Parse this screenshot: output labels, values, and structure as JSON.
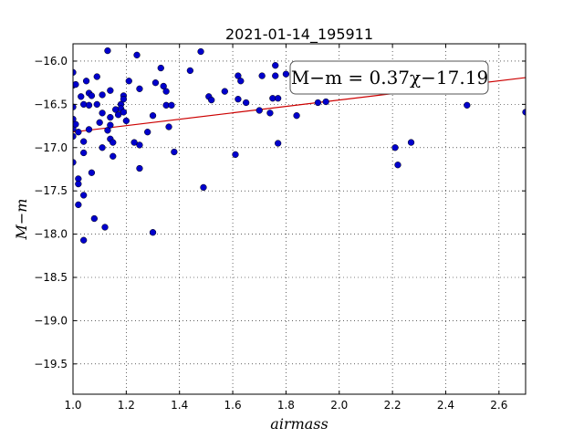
{
  "chart_data": {
    "type": "scatter",
    "title": "2021-01-14_195911",
    "xlabel": "airmass",
    "ylabel": "M−m",
    "xlim": [
      1.0,
      2.7
    ],
    "ylim": [
      -19.85,
      -15.8
    ],
    "y_inverted": false,
    "grid": true,
    "xticks": [
      1.0,
      1.2,
      1.4,
      1.6,
      1.8,
      2.0,
      2.2,
      2.4,
      2.6
    ],
    "xtick_labels": [
      "1.0",
      "1.2",
      "1.4",
      "1.6",
      "1.8",
      "2.0",
      "2.2",
      "2.4",
      "2.6"
    ],
    "yticks": [
      -16.0,
      -16.5,
      -17.0,
      -17.5,
      -18.0,
      -18.5,
      -19.0,
      -19.5
    ],
    "ytick_labels": [
      "−16.0",
      "−16.5",
      "−17.0",
      "−17.5",
      "−18.0",
      "−18.5",
      "−19.0",
      "−19.5"
    ],
    "point_color": "#0000cc",
    "fit_color": "#cc0000",
    "fit": {
      "slope": 0.37,
      "intercept": -17.19
    },
    "annotation": "M−m = 0.37χ−17.19",
    "points": [
      {
        "x": 1.0,
        "y": -16.13
      },
      {
        "x": 1.0,
        "y": -16.28
      },
      {
        "x": 1.0,
        "y": -16.53
      },
      {
        "x": 1.0,
        "y": -16.67
      },
      {
        "x": 1.0,
        "y": -16.78
      },
      {
        "x": 1.0,
        "y": -16.87
      },
      {
        "x": 1.0,
        "y": -17.17
      },
      {
        "x": 1.01,
        "y": -16.27
      },
      {
        "x": 1.01,
        "y": -16.73
      },
      {
        "x": 1.02,
        "y": -16.82
      },
      {
        "x": 1.02,
        "y": -17.36
      },
      {
        "x": 1.02,
        "y": -17.42
      },
      {
        "x": 1.02,
        "y": -17.66
      },
      {
        "x": 1.03,
        "y": -16.41
      },
      {
        "x": 1.04,
        "y": -16.5
      },
      {
        "x": 1.04,
        "y": -16.93
      },
      {
        "x": 1.04,
        "y": -17.06
      },
      {
        "x": 1.04,
        "y": -17.55
      },
      {
        "x": 1.04,
        "y": -18.07
      },
      {
        "x": 1.05,
        "y": -16.23
      },
      {
        "x": 1.06,
        "y": -16.37
      },
      {
        "x": 1.06,
        "y": -16.51
      },
      {
        "x": 1.06,
        "y": -16.79
      },
      {
        "x": 1.07,
        "y": -16.4
      },
      {
        "x": 1.07,
        "y": -17.29
      },
      {
        "x": 1.08,
        "y": -17.82
      },
      {
        "x": 1.09,
        "y": -16.18
      },
      {
        "x": 1.09,
        "y": -16.5
      },
      {
        "x": 1.1,
        "y": -16.71
      },
      {
        "x": 1.11,
        "y": -16.39
      },
      {
        "x": 1.11,
        "y": -16.6
      },
      {
        "x": 1.11,
        "y": -17.0
      },
      {
        "x": 1.12,
        "y": -17.92
      },
      {
        "x": 1.13,
        "y": -15.88
      },
      {
        "x": 1.13,
        "y": -16.8
      },
      {
        "x": 1.14,
        "y": -16.34
      },
      {
        "x": 1.14,
        "y": -16.65
      },
      {
        "x": 1.14,
        "y": -16.74
      },
      {
        "x": 1.14,
        "y": -16.9
      },
      {
        "x": 1.15,
        "y": -16.94
      },
      {
        "x": 1.15,
        "y": -17.1
      },
      {
        "x": 1.16,
        "y": -16.56
      },
      {
        "x": 1.17,
        "y": -16.62
      },
      {
        "x": 1.18,
        "y": -16.5
      },
      {
        "x": 1.18,
        "y": -16.55
      },
      {
        "x": 1.19,
        "y": -16.4
      },
      {
        "x": 1.19,
        "y": -16.44
      },
      {
        "x": 1.19,
        "y": -16.59
      },
      {
        "x": 1.2,
        "y": -16.69
      },
      {
        "x": 1.21,
        "y": -16.23
      },
      {
        "x": 1.23,
        "y": -16.94
      },
      {
        "x": 1.24,
        "y": -15.93
      },
      {
        "x": 1.25,
        "y": -16.32
      },
      {
        "x": 1.25,
        "y": -16.97
      },
      {
        "x": 1.25,
        "y": -17.24
      },
      {
        "x": 1.28,
        "y": -16.82
      },
      {
        "x": 1.3,
        "y": -16.63
      },
      {
        "x": 1.3,
        "y": -17.98
      },
      {
        "x": 1.31,
        "y": -16.25
      },
      {
        "x": 1.33,
        "y": -16.08
      },
      {
        "x": 1.34,
        "y": -16.29
      },
      {
        "x": 1.35,
        "y": -16.35
      },
      {
        "x": 1.35,
        "y": -16.51
      },
      {
        "x": 1.36,
        "y": -16.76
      },
      {
        "x": 1.37,
        "y": -16.51
      },
      {
        "x": 1.38,
        "y": -17.05
      },
      {
        "x": 1.44,
        "y": -16.11
      },
      {
        "x": 1.48,
        "y": -15.89
      },
      {
        "x": 1.49,
        "y": -17.46
      },
      {
        "x": 1.51,
        "y": -16.41
      },
      {
        "x": 1.52,
        "y": -16.45
      },
      {
        "x": 1.57,
        "y": -16.35
      },
      {
        "x": 1.61,
        "y": -17.08
      },
      {
        "x": 1.62,
        "y": -16.17
      },
      {
        "x": 1.62,
        "y": -16.44
      },
      {
        "x": 1.63,
        "y": -16.23
      },
      {
        "x": 1.65,
        "y": -16.48
      },
      {
        "x": 1.7,
        "y": -16.57
      },
      {
        "x": 1.71,
        "y": -16.17
      },
      {
        "x": 1.74,
        "y": -16.6
      },
      {
        "x": 1.75,
        "y": -16.43
      },
      {
        "x": 1.76,
        "y": -16.05
      },
      {
        "x": 1.76,
        "y": -16.17
      },
      {
        "x": 1.77,
        "y": -16.43
      },
      {
        "x": 1.77,
        "y": -16.95
      },
      {
        "x": 1.8,
        "y": -16.15
      },
      {
        "x": 1.84,
        "y": -16.63
      },
      {
        "x": 1.92,
        "y": -16.48
      },
      {
        "x": 1.95,
        "y": -16.47
      },
      {
        "x": 2.21,
        "y": -17.0
      },
      {
        "x": 2.22,
        "y": -17.2
      },
      {
        "x": 2.27,
        "y": -16.94
      },
      {
        "x": 2.48,
        "y": -16.51
      },
      {
        "x": 2.7,
        "y": -16.59
      }
    ]
  }
}
